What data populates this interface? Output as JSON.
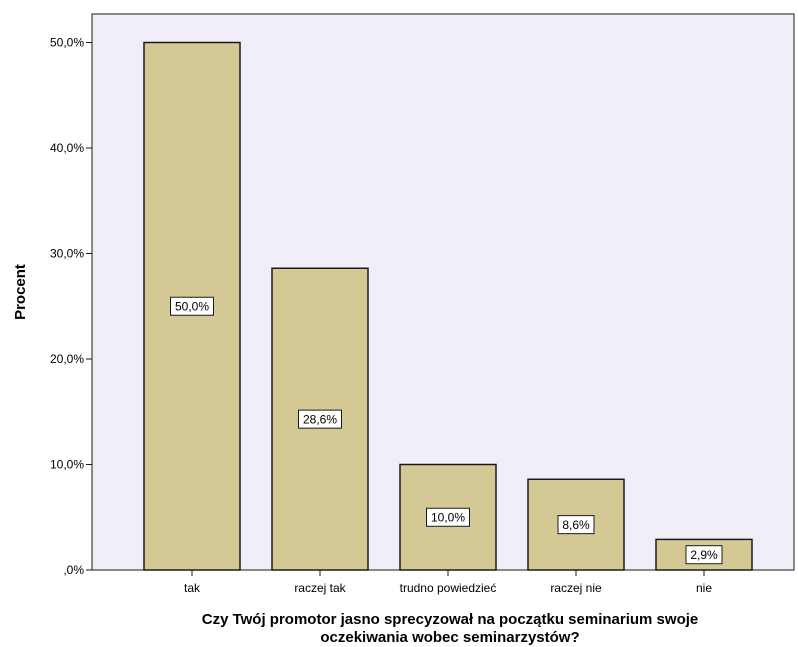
{
  "chart_data": {
    "type": "bar",
    "categories": [
      "tak",
      "raczej tak",
      "trudno powiedzieć",
      "raczej nie",
      "nie"
    ],
    "values": [
      50.0,
      28.6,
      10.0,
      8.6,
      2.9
    ],
    "data_labels": [
      "50,0%",
      "28,6%",
      "10,0%",
      "8,6%",
      "2,9%"
    ],
    "ylabel": "Procent",
    "xlabel_lines": [
      "Czy Twój promotor jasno sprecyzował na początku seminarium swoje",
      "oczekiwania wobec seminarzystów?"
    ],
    "ylim": [
      0,
      52.7
    ],
    "yticks": [
      0,
      10,
      20,
      30,
      40,
      50
    ],
    "ytick_labels": [
      ",0%",
      "10,0%",
      "20,0%",
      "30,0%",
      "40,0%",
      "50,0%"
    ],
    "grid": false,
    "legend": "none",
    "colors": {
      "bar_fill": "#d4c995",
      "bar_stroke": "#1a1a1a",
      "plot_background": "#f2eef7",
      "axis": "#1a1a1a"
    }
  }
}
